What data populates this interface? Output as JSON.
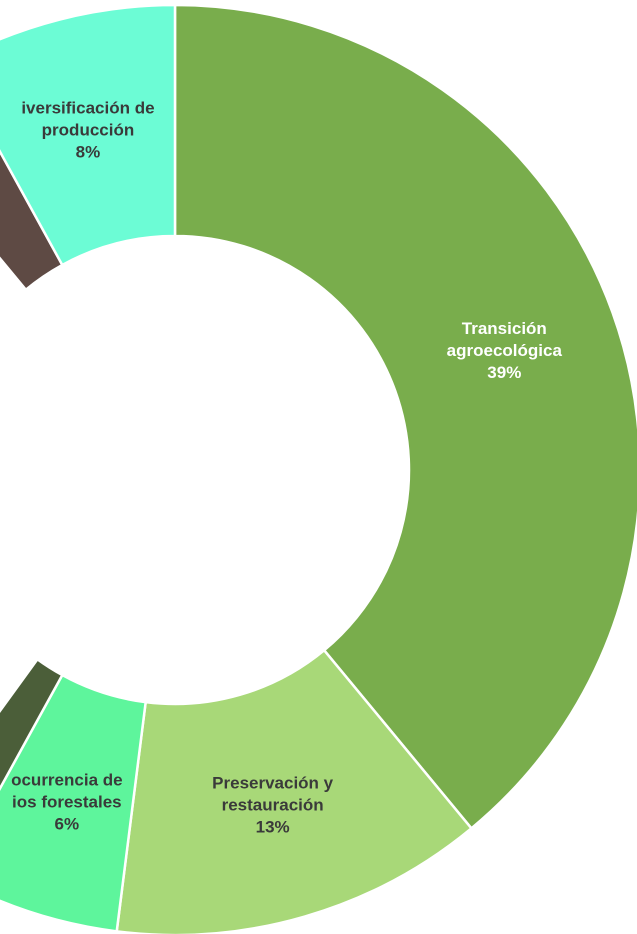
{
  "chart_data": {
    "type": "donut",
    "categories": [
      [
        "Transición",
        "agroecológica"
      ],
      [
        "Preservación y",
        "restauración"
      ],
      [
        "ocurrencia de",
        "ios forestales"
      ],
      null,
      null,
      [
        "iversificación de",
        "producción"
      ]
    ],
    "values": [
      39,
      13,
      6,
      2,
      3,
      8
    ],
    "value_labels": [
      "39%",
      "13%",
      "6%",
      null,
      null,
      "8%"
    ],
    "colors": [
      "#79ad4c",
      "#a8d878",
      "#5ef59c",
      "#4b5e39",
      "#5e4a44",
      "#6cfcd5"
    ],
    "label_colors": [
      "#ffffff",
      "#3a3a3a",
      "#3a3a3a",
      null,
      null,
      "#3a3a3a"
    ]
  }
}
